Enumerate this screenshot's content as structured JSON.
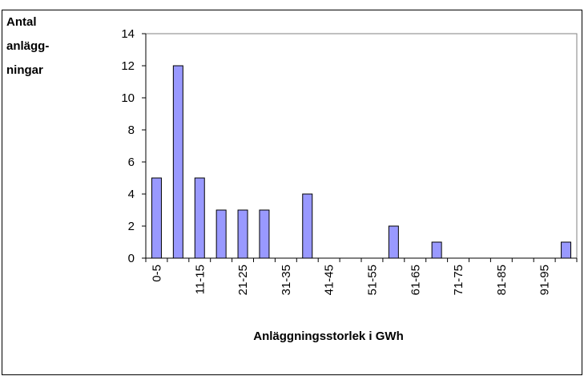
{
  "chart_data": {
    "type": "bar",
    "ylabel_lines": [
      "Antal",
      "anlägg-",
      "ningar"
    ],
    "xlabel": "Anläggningsstorlek i GWh",
    "categories": [
      "0-5",
      null,
      "11-15",
      null,
      "21-25",
      null,
      "31-35",
      null,
      "41-45",
      null,
      "51-55",
      null,
      "61-65",
      null,
      "71-75",
      null,
      "81-85",
      null,
      "91-95",
      null
    ],
    "values": [
      5,
      12,
      5,
      3,
      3,
      3,
      0,
      4,
      0,
      0,
      0,
      2,
      0,
      1,
      0,
      0,
      0,
      0,
      0,
      1
    ],
    "color": "#9999ff",
    "ylim": [
      0,
      14
    ],
    "yticks": [
      0,
      2,
      4,
      6,
      8,
      10,
      12,
      14
    ],
    "grid": false
  }
}
